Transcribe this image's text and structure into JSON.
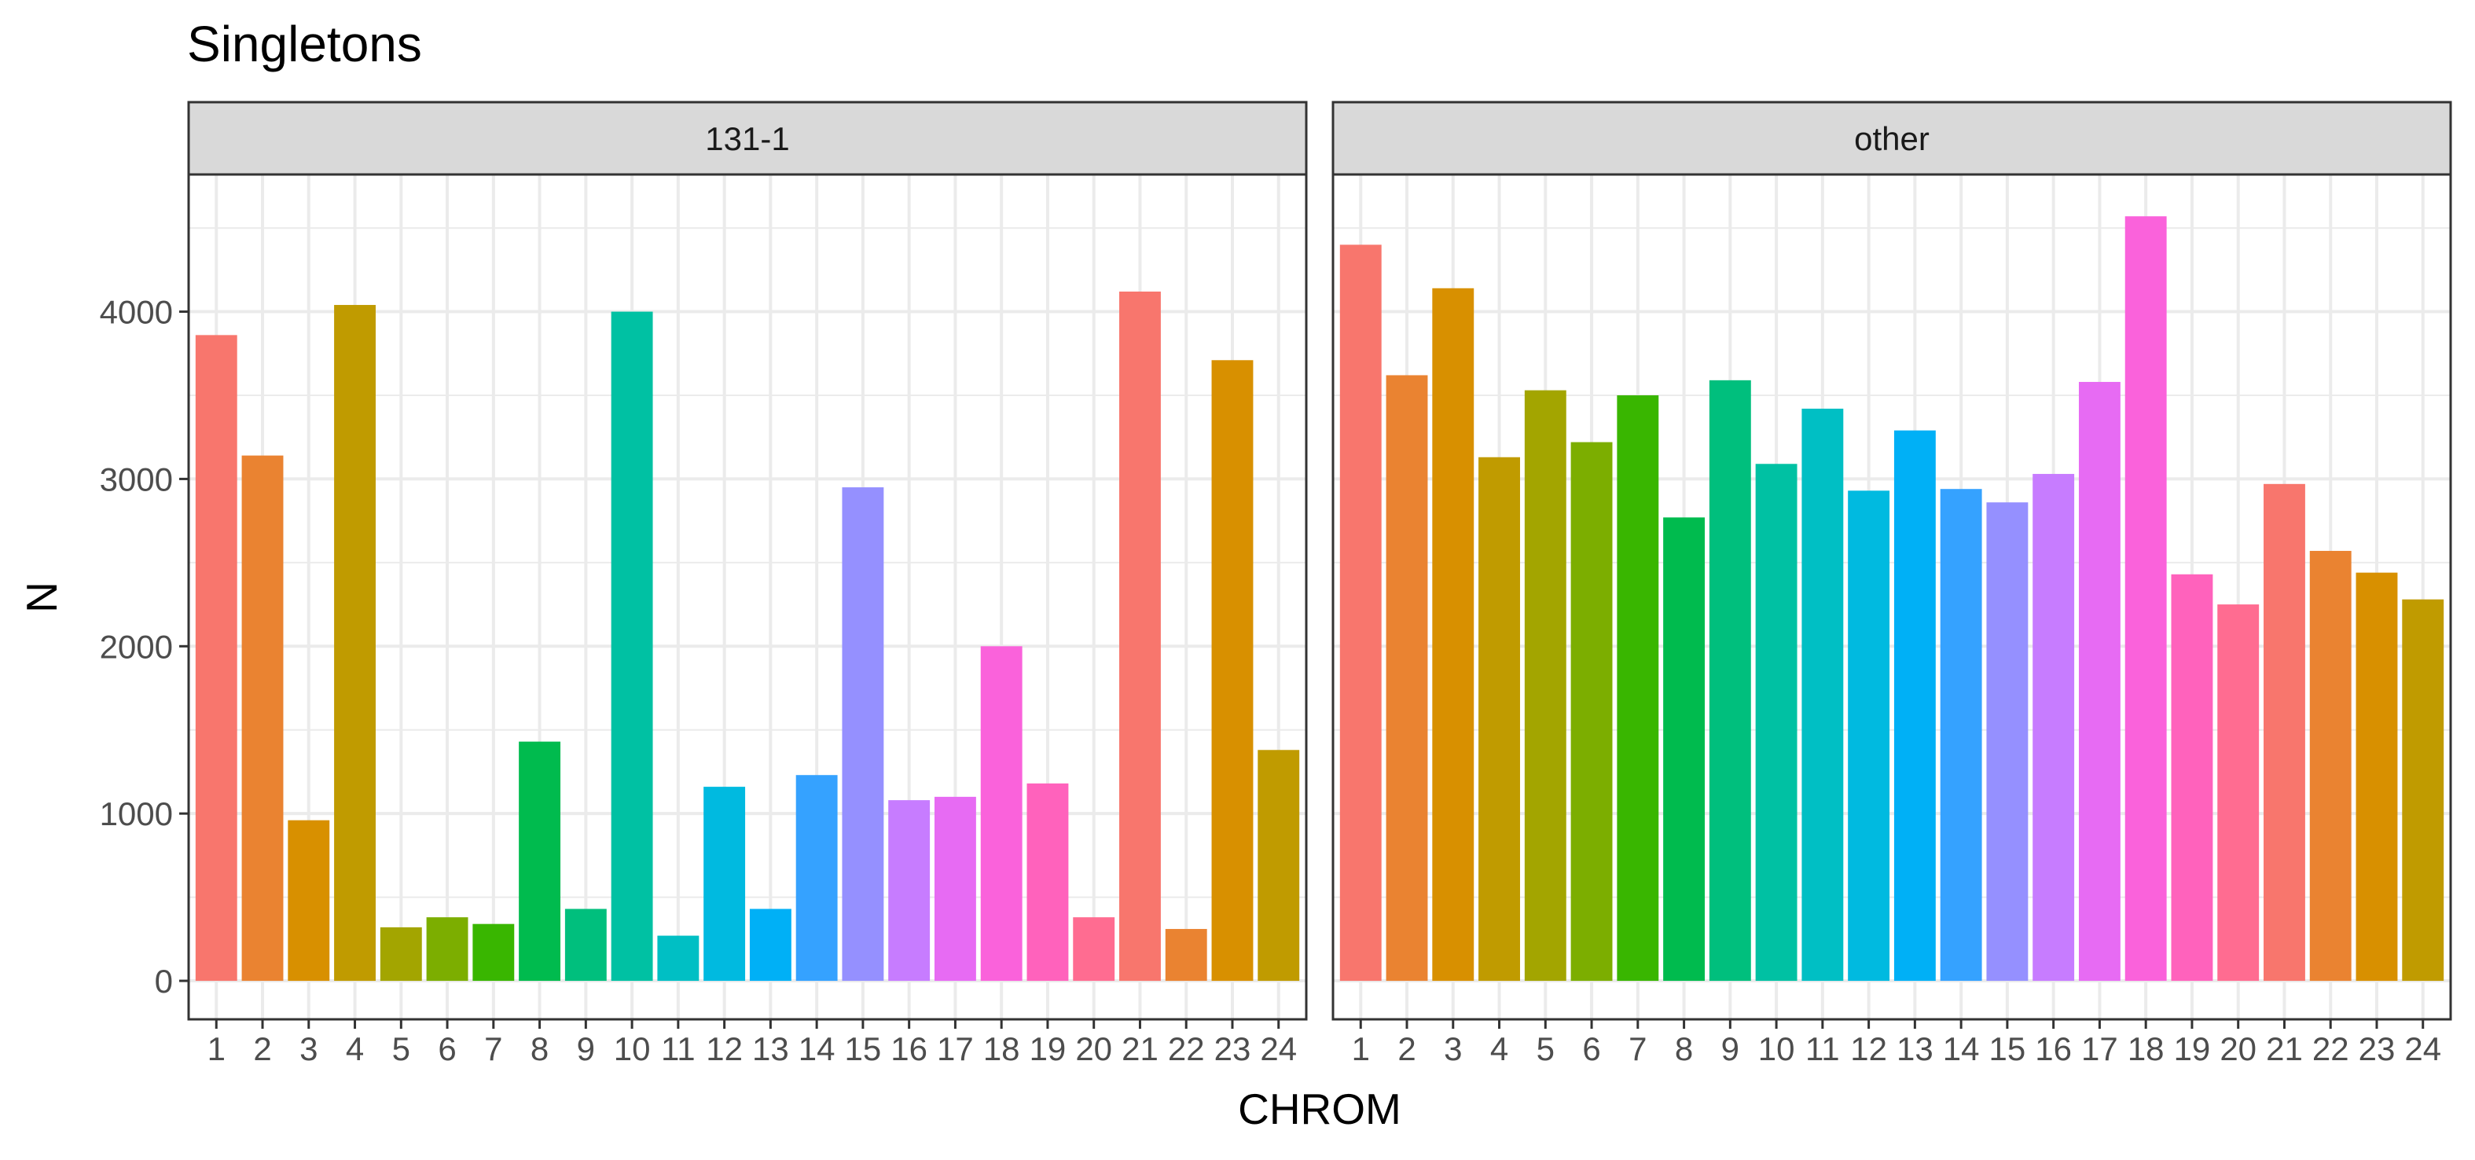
{
  "chart_data": {
    "type": "bar",
    "title": "Singletons",
    "xlabel": "CHROM",
    "ylabel": "N",
    "ylim": [
      -230,
      4820
    ],
    "yticks": [
      0,
      1000,
      2000,
      3000,
      4000
    ],
    "categories": [
      "1",
      "2",
      "3",
      "4",
      "5",
      "6",
      "7",
      "8",
      "9",
      "10",
      "11",
      "12",
      "13",
      "14",
      "15",
      "16",
      "17",
      "18",
      "19",
      "20",
      "21",
      "22",
      "23",
      "24"
    ],
    "colors": [
      "#F8766D",
      "#EA8331",
      "#D89000",
      "#C09B00",
      "#A3A500",
      "#7CAE00",
      "#39B600",
      "#00BB4E",
      "#00BF7D",
      "#00C1A3",
      "#00BFC4",
      "#00BAE0",
      "#00B0F6",
      "#35A2FF",
      "#9590FF",
      "#C77CFF",
      "#E76BF3",
      "#FA62DB",
      "#FF62BC",
      "#FF6C91",
      "#F8766D",
      "#EA8331",
      "#D89000",
      "#C09B00"
    ],
    "grid": true,
    "legend": "none",
    "panels": [
      {
        "label": "131-1",
        "values": [
          3860,
          3140,
          960,
          4040,
          320,
          380,
          340,
          1430,
          430,
          4000,
          270,
          1160,
          430,
          1230,
          2950,
          1080,
          1100,
          2000,
          1180,
          380,
          4120,
          310,
          3710,
          1380
        ]
      },
      {
        "label": "other",
        "values": [
          4400,
          3620,
          4140,
          3130,
          3530,
          3220,
          3500,
          2770,
          3590,
          3090,
          3420,
          2930,
          3290,
          2940,
          2860,
          3030,
          3580,
          4570,
          2430,
          2250,
          2970,
          2570,
          2440,
          2280
        ]
      }
    ]
  }
}
